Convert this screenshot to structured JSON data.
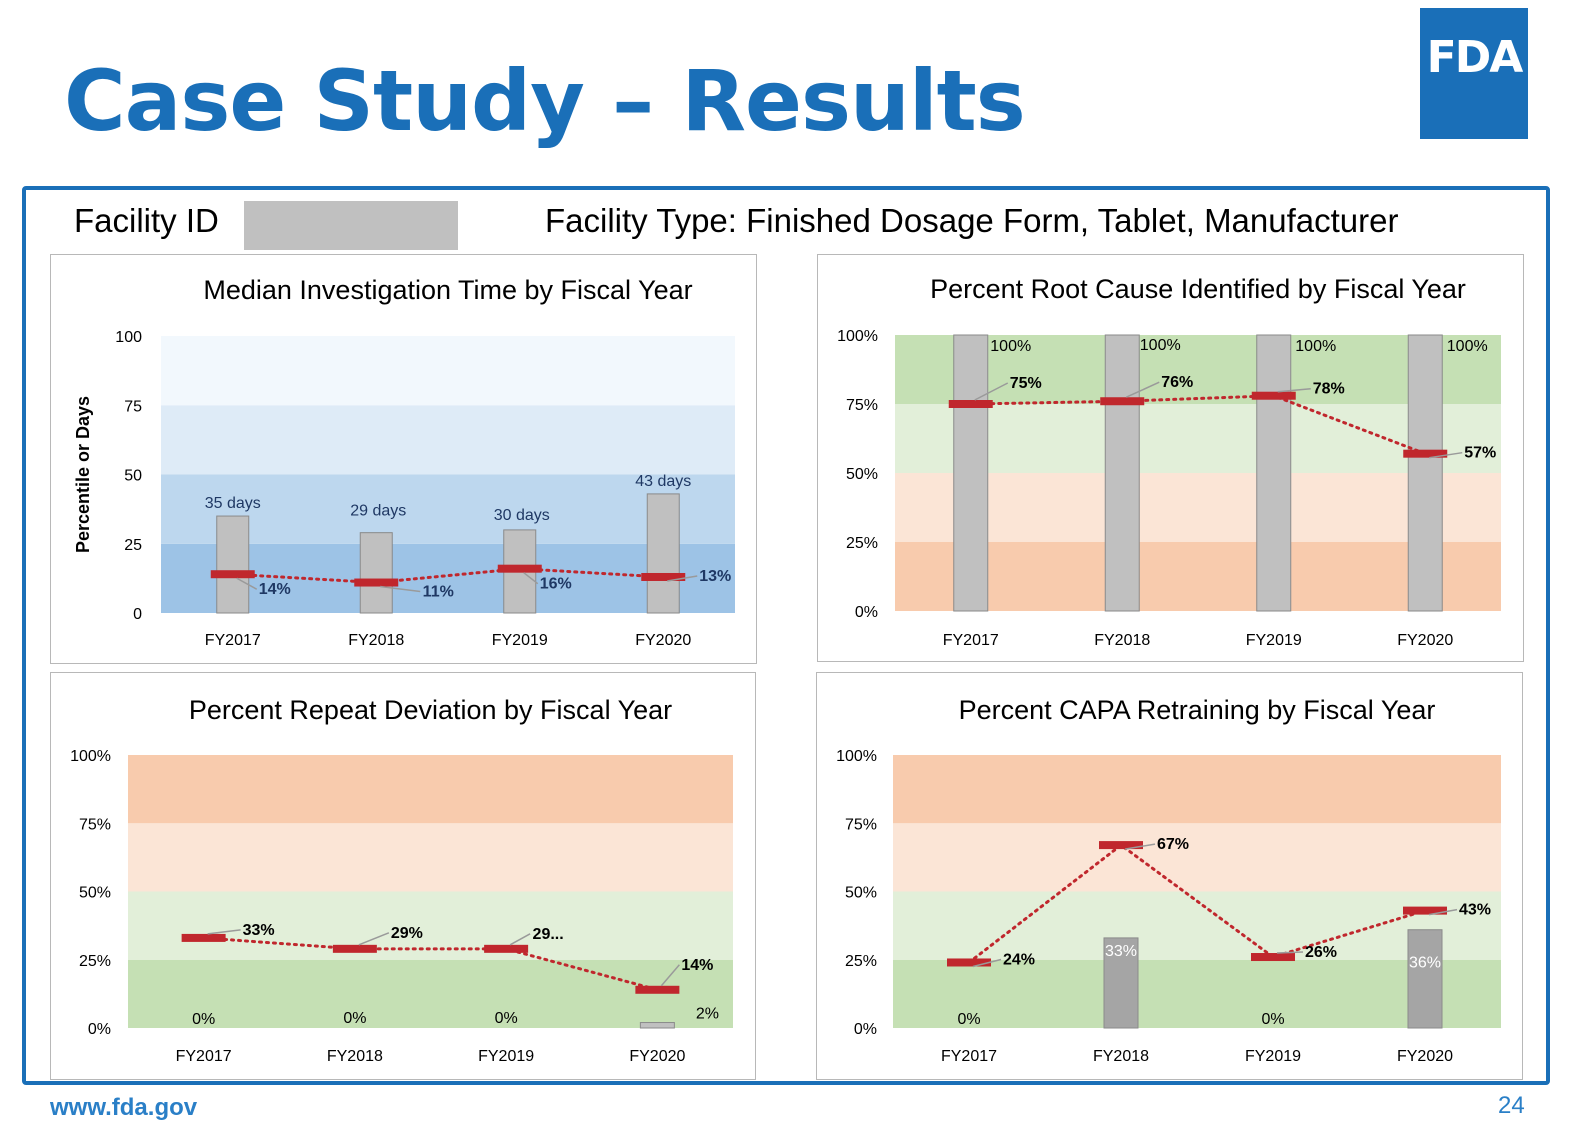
{
  "slide": {
    "title": "Case Study – Results",
    "logo_text": "FDA",
    "facility_id_label": "Facility ID",
    "facility_type": "Facility Type: Finished Dosage Form, Tablet, Manufacturer",
    "footer_url": "www.fda.gov",
    "page_number": "24"
  },
  "chart_data": [
    {
      "id": "c1",
      "type": "bar",
      "title": "Median Investigation Time by Fiscal Year",
      "ylabel": "Percentile or Days",
      "xlabel": "",
      "ylim": [
        0,
        100
      ],
      "yticks": [
        "0",
        "25",
        "50",
        "75",
        "100"
      ],
      "categories": [
        "FY2017",
        "FY2018",
        "FY2019",
        "FY2020"
      ],
      "bands": [
        {
          "from": 0,
          "to": 25,
          "color": "#9dc3e6"
        },
        {
          "from": 25,
          "to": 50,
          "color": "#bdd7ee"
        },
        {
          "from": 50,
          "to": 75,
          "color": "#deebf7"
        },
        {
          "from": 75,
          "to": 100,
          "color": "#f2f8fd"
        }
      ],
      "series": [
        {
          "kind": "bar",
          "values": [
            35,
            29,
            30,
            43
          ],
          "labels": [
            "35 days",
            "29 days",
            "30 days",
            "43 days"
          ],
          "color": "#c0c0c0",
          "label_color": "#1f3864"
        },
        {
          "kind": "marker-line",
          "values": [
            14,
            11,
            16,
            13
          ],
          "labels": [
            "14%",
            "11%",
            "16%",
            "13%"
          ],
          "color": "#c0272d",
          "label_color": "#1f3864"
        }
      ]
    },
    {
      "id": "c2",
      "type": "bar",
      "title": "Percent Root Cause Identified by Fiscal Year",
      "ylabel": "",
      "xlabel": "",
      "ylim": [
        0,
        100
      ],
      "yticks": [
        "0%",
        "25%",
        "50%",
        "75%",
        "100%"
      ],
      "categories": [
        "FY2017",
        "FY2018",
        "FY2019",
        "FY2020"
      ],
      "bands": [
        {
          "from": 0,
          "to": 25,
          "color": "#f8cbad"
        },
        {
          "from": 25,
          "to": 50,
          "color": "#fbe5d6"
        },
        {
          "from": 50,
          "to": 75,
          "color": "#e2efd9"
        },
        {
          "from": 75,
          "to": 100,
          "color": "#c5e0b4"
        }
      ],
      "series": [
        {
          "kind": "bar",
          "values": [
            100,
            100,
            100,
            100
          ],
          "labels": [
            "100%",
            "100%",
            "100%",
            "100%"
          ],
          "color": "#c0c0c0",
          "label_color": "#000000"
        },
        {
          "kind": "marker-line",
          "values": [
            75,
            76,
            78,
            57
          ],
          "labels": [
            "75%",
            "76%",
            "78%",
            "57%"
          ],
          "color": "#c0272d",
          "label_color": "#000000"
        }
      ]
    },
    {
      "id": "c3",
      "type": "bar",
      "title": "Percent Repeat Deviation by Fiscal Year",
      "ylabel": "",
      "xlabel": "",
      "ylim": [
        0,
        100
      ],
      "yticks": [
        "0%",
        "25%",
        "50%",
        "75%",
        "100%"
      ],
      "categories": [
        "FY2017",
        "FY2018",
        "FY2019",
        "FY2020"
      ],
      "bands": [
        {
          "from": 0,
          "to": 25,
          "color": "#c5e0b4"
        },
        {
          "from": 25,
          "to": 50,
          "color": "#e2efd9"
        },
        {
          "from": 50,
          "to": 75,
          "color": "#fbe5d6"
        },
        {
          "from": 75,
          "to": 100,
          "color": "#f8cbad"
        }
      ],
      "series": [
        {
          "kind": "bar",
          "values": [
            0,
            0,
            0,
            2
          ],
          "labels": [
            "0%",
            "0%",
            "0%",
            "2%"
          ],
          "color": "#c0c0c0",
          "label_color": "#000000"
        },
        {
          "kind": "marker-line",
          "values": [
            33,
            29,
            29,
            14
          ],
          "labels": [
            "33%",
            "29%",
            "29...",
            "14%"
          ],
          "color": "#c0272d",
          "label_color": "#000000"
        }
      ]
    },
    {
      "id": "c4",
      "type": "bar",
      "title": "Percent CAPA Retraining by Fiscal Year",
      "ylabel": "",
      "xlabel": "",
      "ylim": [
        0,
        100
      ],
      "yticks": [
        "0%",
        "25%",
        "50%",
        "75%",
        "100%"
      ],
      "categories": [
        "FY2017",
        "FY2018",
        "FY2019",
        "FY2020"
      ],
      "bands": [
        {
          "from": 0,
          "to": 25,
          "color": "#c5e0b4"
        },
        {
          "from": 25,
          "to": 50,
          "color": "#e2efd9"
        },
        {
          "from": 50,
          "to": 75,
          "color": "#fbe5d6"
        },
        {
          "from": 75,
          "to": 100,
          "color": "#f8cbad"
        }
      ],
      "series": [
        {
          "kind": "bar",
          "values": [
            0,
            33,
            0,
            36
          ],
          "labels": [
            "0%",
            "33%",
            "0%",
            "36%"
          ],
          "color": "#a5a5a5",
          "label_color": "#000000",
          "inside_label_color": "#ffffff"
        },
        {
          "kind": "marker-line",
          "values": [
            24,
            67,
            26,
            43
          ],
          "labels": [
            "24%",
            "67%",
            "26%",
            "43%"
          ],
          "color": "#c0272d",
          "label_color": "#000000"
        }
      ]
    }
  ]
}
